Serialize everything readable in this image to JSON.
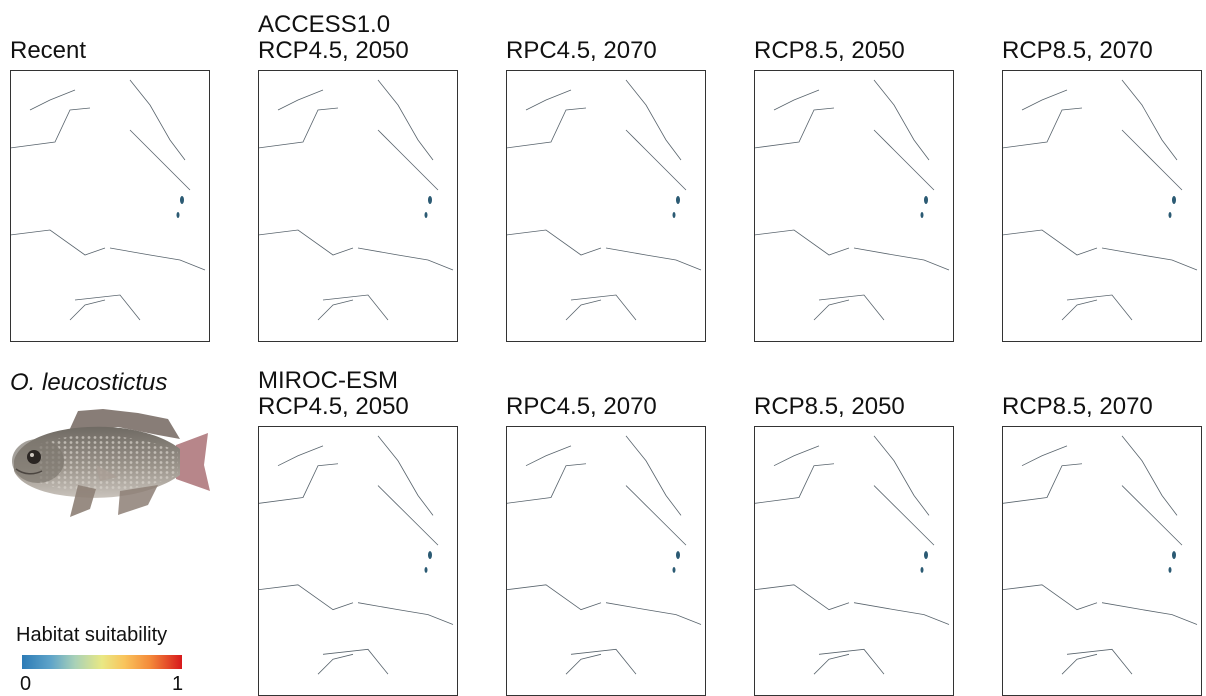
{
  "labels": {
    "recent": "Recent",
    "row1_model": "ACCESS1.0",
    "row2_model": "MIROC-ESM",
    "species": "O. leucostictus"
  },
  "rows": [
    {
      "model": "ACCESS1.0",
      "panels": [
        "RCP4.5, 2050",
        "RPC4.5, 2070",
        "RCP8.5, 2050",
        "RCP8.5, 2070"
      ]
    },
    {
      "model": "MIROC-ESM",
      "panels": [
        "RCP4.5, 2050",
        "RPC4.5, 2070",
        "RCP8.5, 2050",
        "RCP8.5, 2070"
      ]
    }
  ],
  "legend": {
    "title": "Habitat suitability",
    "min": "0",
    "max": "1",
    "colors": [
      "#2c7bb6",
      "#a8d1b8",
      "#e9e884",
      "#f48a3a",
      "#d7191c"
    ]
  }
}
